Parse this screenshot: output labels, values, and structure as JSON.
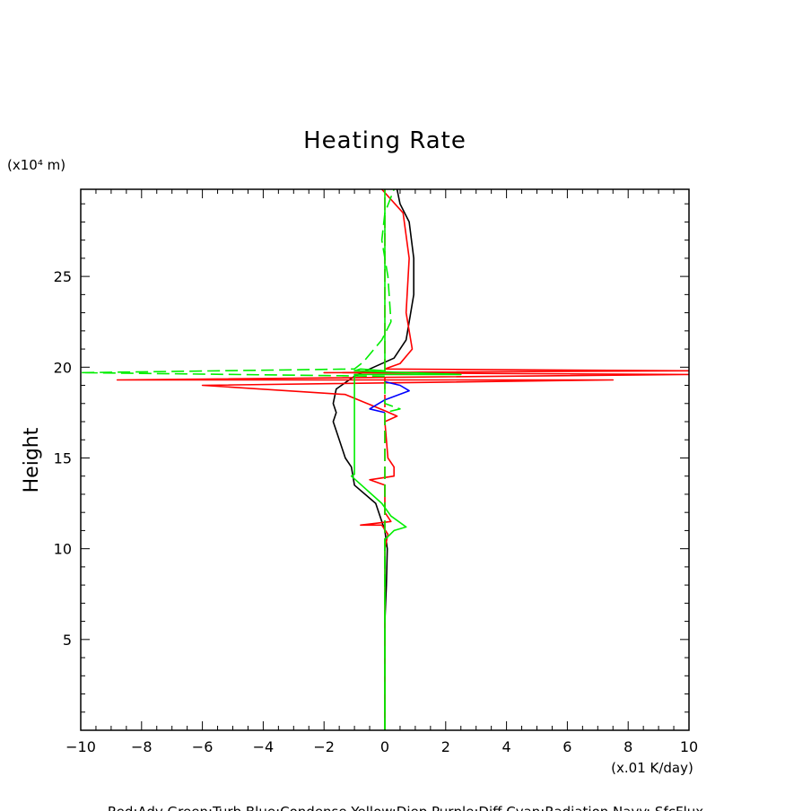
{
  "chart_data": {
    "type": "line",
    "title": "Heating Rate",
    "xlabel": "(x.01 K/day)",
    "ylabel": "Height",
    "y_unit": "(x10⁴ m)",
    "xlim": [
      -10,
      10
    ],
    "ylim": [
      0,
      29.8
    ],
    "x_ticks": [
      -10,
      -8,
      -6,
      -4,
      -2,
      0,
      2,
      4,
      6,
      8,
      10
    ],
    "y_ticks": [
      5,
      10,
      15,
      20,
      25
    ],
    "x_tick_labels": [
      "−10",
      "−8",
      "−6",
      "−4",
      "−2",
      "0",
      "2",
      "4",
      "6",
      "8",
      "10"
    ],
    "y_tick_labels": [
      "5",
      "10",
      "15",
      "20",
      "25"
    ],
    "footer": "Red:Adv Green:Turb Blue:Condense Yellow:Diep Purple:Diff Cyan:Radiation Navy: SfcFlux",
    "series": [
      {
        "color": "#000000",
        "dash": "solid",
        "points": [
          [
            0,
            0
          ],
          [
            0,
            6
          ],
          [
            0.05,
            8
          ],
          [
            0.08,
            10
          ],
          [
            0,
            11
          ],
          [
            -0.3,
            12.5
          ],
          [
            -1,
            13.5
          ],
          [
            -1.1,
            14.5
          ],
          [
            -1.3,
            15
          ],
          [
            -1.6,
            16.5
          ],
          [
            -1.7,
            17
          ],
          [
            -1.6,
            17.5
          ],
          [
            -1.7,
            18
          ],
          [
            -1.6,
            18.8
          ],
          [
            -1.0,
            19.5
          ],
          [
            -0.5,
            19.9
          ],
          [
            0.3,
            20.5
          ],
          [
            0.7,
            21.5
          ],
          [
            0.95,
            24
          ],
          [
            0.95,
            26
          ],
          [
            0.8,
            28
          ],
          [
            0.5,
            29
          ],
          [
            0.4,
            29.8
          ]
        ]
      },
      {
        "color": "#ff0000",
        "dash": "solid",
        "points": [
          [
            0,
            0
          ],
          [
            0,
            10
          ],
          [
            0.1,
            10.8
          ],
          [
            -0.1,
            11.3
          ],
          [
            -0.8,
            11.3
          ],
          [
            0.2,
            11.5
          ],
          [
            0,
            12
          ],
          [
            0,
            13.5
          ],
          [
            -0.5,
            13.8
          ],
          [
            0.3,
            14
          ],
          [
            0.3,
            14.5
          ],
          [
            0.1,
            15
          ],
          [
            0,
            17
          ],
          [
            0.4,
            17.3
          ],
          [
            0,
            17.6
          ],
          [
            -1.3,
            18.5
          ],
          [
            -6,
            19.0
          ],
          [
            7.5,
            19.3
          ],
          [
            -8.8,
            19.3
          ],
          [
            10,
            19.6
          ],
          [
            -2,
            19.7
          ],
          [
            10,
            19.8
          ],
          [
            0,
            19.9
          ],
          [
            0.5,
            20.2
          ],
          [
            0.9,
            21
          ],
          [
            0.7,
            23
          ],
          [
            0.8,
            26
          ],
          [
            0.6,
            28.5
          ],
          [
            -0.1,
            29.8
          ]
        ]
      },
      {
        "color": "#ff0000",
        "dash": "dashed",
        "points": [
          [
            0,
            0
          ],
          [
            0,
            29.8
          ]
        ]
      },
      {
        "color": "#0000ff",
        "dash": "solid",
        "points": [
          [
            0,
            17.5
          ],
          [
            -0.5,
            17.7
          ],
          [
            0,
            18.2
          ],
          [
            0.8,
            18.7
          ],
          [
            0.5,
            19
          ],
          [
            0,
            19.2
          ]
        ]
      },
      {
        "color": "#00ee00",
        "dash": "solid",
        "points": [
          [
            0,
            0
          ],
          [
            0,
            10.5
          ],
          [
            0.3,
            11
          ],
          [
            0.7,
            11.2
          ],
          [
            0.2,
            11.8
          ],
          [
            -0.1,
            12.5
          ],
          [
            -1.1,
            14.0
          ],
          [
            -1.0,
            14.1
          ],
          [
            -1.0,
            19.6
          ],
          [
            2.5,
            19.6
          ],
          [
            -1.0,
            19.8
          ],
          [
            -0.8,
            19.9
          ],
          [
            0,
            19.8
          ],
          [
            0,
            29.8
          ]
        ]
      },
      {
        "color": "#00ee00",
        "dash": "dashed",
        "points": [
          [
            0,
            0
          ],
          [
            0,
            17.5
          ],
          [
            0.5,
            17.7
          ],
          [
            0,
            18
          ],
          [
            0,
            19.5
          ],
          [
            -10,
            19.7
          ],
          [
            -1.0,
            19.9
          ],
          [
            -0.7,
            20.3
          ],
          [
            -0.1,
            21.5
          ],
          [
            0.2,
            22.5
          ],
          [
            0.1,
            25
          ],
          [
            -0.1,
            27
          ],
          [
            0,
            28.5
          ],
          [
            0.3,
            29.8
          ]
        ]
      }
    ]
  }
}
